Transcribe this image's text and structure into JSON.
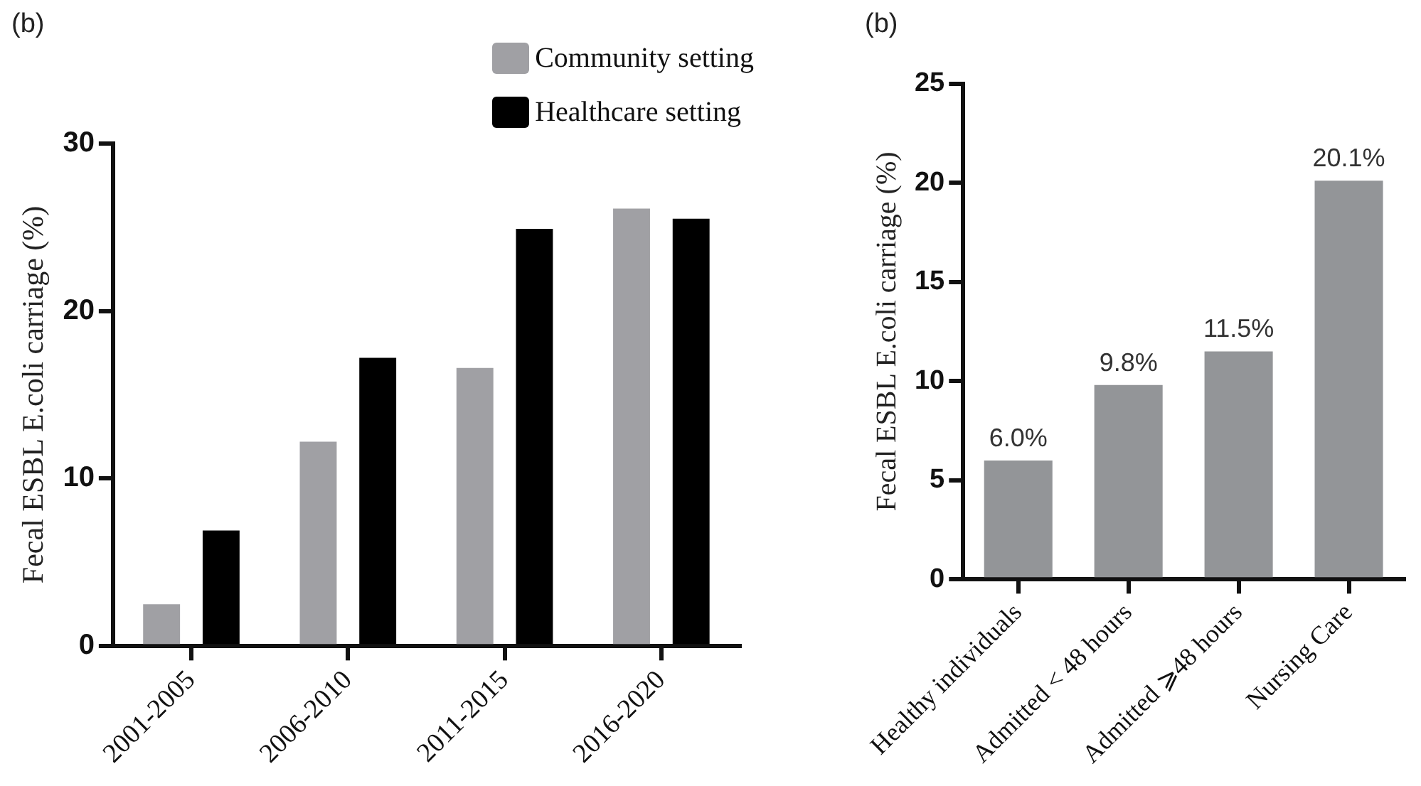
{
  "chart_data": [
    {
      "type": "bar",
      "title": "(b)",
      "ylabel": "Fecal ESBL E.coli carriage (%)",
      "categories": [
        "2001-2005",
        "2006-2010",
        "2011-2015",
        "2016-2020"
      ],
      "series": [
        {
          "name": "Community setting",
          "color": "#a0a0a4",
          "values": [
            2.5,
            12.2,
            16.6,
            26.1
          ]
        },
        {
          "name": "Healthcare setting",
          "color": "#000000",
          "values": [
            6.9,
            17.2,
            24.9,
            25.5
          ]
        }
      ],
      "ylim": [
        0,
        30
      ],
      "yticks": [
        0,
        10,
        20,
        30
      ],
      "legend": "top right"
    },
    {
      "type": "bar",
      "title": "(b)",
      "ylabel": "Fecal ESBL E.coli carriage (%)",
      "categories": [
        "Healthy individuals",
        "Admitted < 48 hours",
        "Admitted ⩾48 hours",
        "Nursing Care"
      ],
      "values": [
        6.0,
        9.8,
        11.5,
        20.1
      ],
      "color": "#939598",
      "value_labels": [
        "6.0%",
        "9.8%",
        "11.5%",
        "20.1%"
      ],
      "ylim": [
        0,
        25
      ],
      "yticks": [
        0,
        5,
        10,
        15,
        20,
        25
      ]
    }
  ]
}
